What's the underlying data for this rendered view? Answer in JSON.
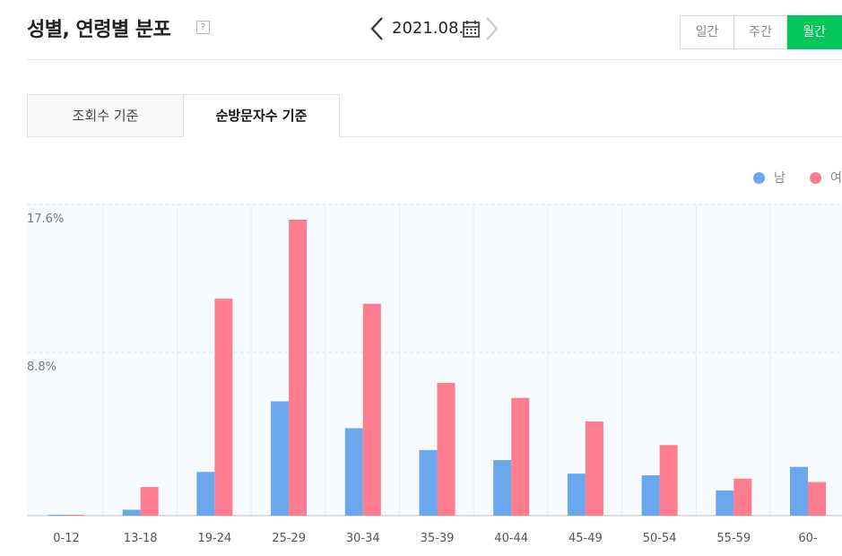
{
  "header": {
    "title": "성별, 연령별 분포",
    "help_icon": "?",
    "date": "2021.08."
  },
  "period_tabs": {
    "daily": "일간",
    "weekly": "주간",
    "monthly": "월간",
    "active": "월간"
  },
  "metric_tabs": {
    "views": "조회수 기준",
    "visitors": "순방문자수 기준",
    "active": "순방문자수 기준"
  },
  "colors": {
    "male": "#6aa7ec",
    "female": "#fe7c8f",
    "accent": "#03c75a"
  },
  "chart_data": {
    "type": "bar",
    "categories": [
      "0-12",
      "13-18",
      "19-24",
      "25-29",
      "30-34",
      "35-39",
      "40-44",
      "45-49",
      "50-54",
      "55-59",
      "60-"
    ],
    "series": [
      {
        "name": "남",
        "values": [
          0.05,
          0.35,
          2.6,
          6.8,
          5.2,
          3.9,
          3.3,
          2.5,
          2.4,
          1.5,
          2.9
        ]
      },
      {
        "name": "여",
        "values": [
          0.05,
          1.7,
          12.9,
          17.6,
          12.6,
          7.9,
          7.0,
          5.6,
          4.2,
          2.2,
          2.0
        ]
      }
    ],
    "ytick_labels": [
      "17.6%",
      "8.8%"
    ],
    "ytick_values": [
      17.6,
      8.8
    ],
    "ylim": [
      0,
      17.6
    ],
    "grid": true,
    "legend_position": "top-right"
  }
}
